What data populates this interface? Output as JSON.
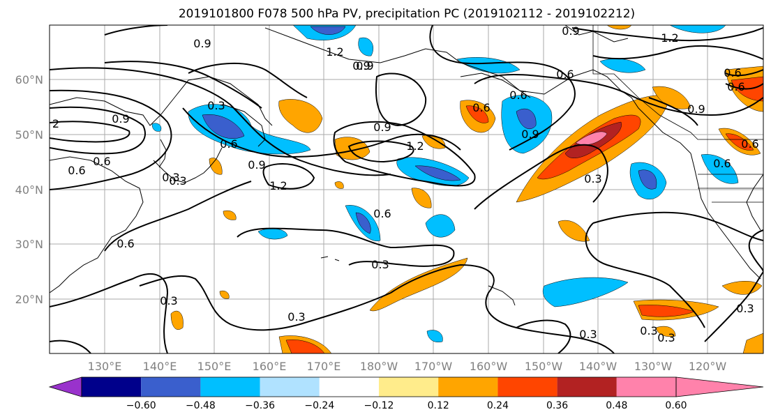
{
  "title": "2019101800 F078 500 hPa PV, precipitation PC (2019102112 - 2019102212)",
  "lat_labels": [
    "60°N",
    "50°N",
    "40°N",
    "30°N",
    "20°N"
  ],
  "lon_labels": [
    "130°E",
    "140°E",
    "150°E",
    "160°E",
    "170°E",
    "180°W",
    "170°W",
    "160°W",
    "150°W",
    "140°W",
    "130°W",
    "120°W"
  ],
  "colorbar": {
    "colors": [
      "#9932cc",
      "#00008b",
      "#3a5fcd",
      "#00bfff",
      "#b0e2ff",
      "#ffffff",
      "#ffec8b",
      "#ffa500",
      "#ff4500",
      "#b22222",
      "#ff82ab"
    ],
    "tick_labels": [
      "−0.60",
      "−0.48",
      "−0.36",
      "−0.24",
      "−0.12",
      "0.12",
      "0.24",
      "0.36",
      "0.48",
      "0.60"
    ]
  },
  "contour_labels": [
    "0.9",
    "1.2",
    "0.9",
    "0.6",
    "0.3",
    "0.6",
    "0.9",
    "1.2",
    "0.6",
    "0.3",
    "0.9",
    "1.2",
    "0.3",
    "0.6",
    "0.9",
    "0.6",
    "0.6",
    "0.3",
    "0.6",
    "0.3",
    "0.9",
    "0.3",
    "0.3",
    "0.3",
    "1.2",
    "0.9",
    "0.6",
    "0.9",
    "0.3",
    "2",
    "0.9",
    "0.6",
    "0.6",
    "0.3",
    "0.3",
    "0.6",
    "0.6"
  ]
}
